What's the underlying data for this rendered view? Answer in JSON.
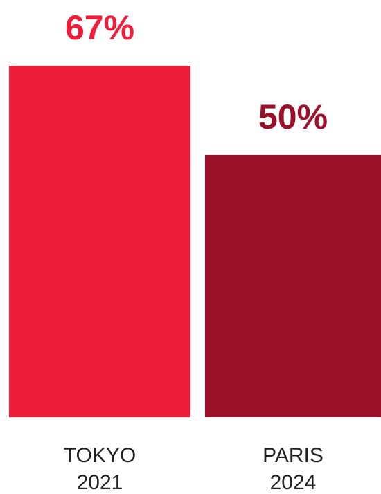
{
  "chart_data": {
    "type": "bar",
    "title": "",
    "xlabel": "",
    "ylabel": "",
    "ylim": [
      0,
      67
    ],
    "grid": false,
    "legend": "none",
    "unit": "%",
    "categories": [
      {
        "line1": "TOKYO",
        "line2": "2021"
      },
      {
        "line1": "PARIS",
        "line2": "2024"
      }
    ],
    "values": [
      67,
      50
    ],
    "value_labels": [
      "67%",
      "50%"
    ],
    "colors": [
      "#ee1d3a",
      "#9b1029"
    ]
  }
}
